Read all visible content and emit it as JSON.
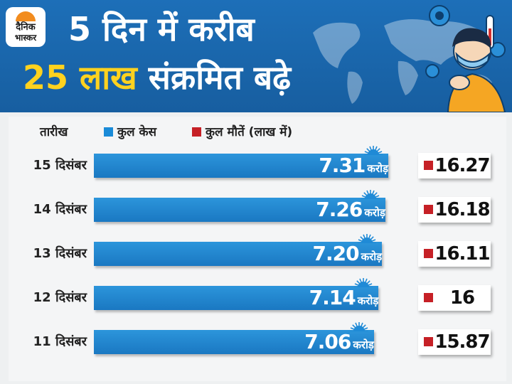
{
  "colors": {
    "header_bg": "#1d6fb8",
    "bar": "#1a78c2",
    "death_marker": "#c62026",
    "highlight": "#ffd21f"
  },
  "logo": {
    "line1": "दैनिक",
    "line2": "भास्कर"
  },
  "header": {
    "title_line1": "5 दिन में करीब",
    "title_line2_highlight": "25 लाख",
    "title_line2_rest": " संक्रमित बढ़े"
  },
  "legend": {
    "date_header": "तारीख",
    "cases_label": "कुल केस",
    "deaths_label": "कुल मौतें (लाख में)"
  },
  "chart_data": {
    "type": "bar",
    "orientation": "horizontal",
    "categories": [
      "15 दिसंबर",
      "14 दिसंबर",
      "13 दिसंबर",
      "12 दिसंबर",
      "11 दिसंबर"
    ],
    "series": [
      {
        "name": "कुल केस",
        "unit": "करोड़",
        "values": [
          7.31,
          7.26,
          7.2,
          7.14,
          7.06
        ],
        "labels": [
          "7.31",
          "7.26",
          "7.20",
          "7.14",
          "7.06"
        ]
      },
      {
        "name": "कुल मौतें (लाख में)",
        "values": [
          16.27,
          16.18,
          16.11,
          16,
          15.87
        ],
        "labels": [
          "16.27",
          "16.18",
          "16.11",
          "16",
          "15.87"
        ]
      }
    ]
  }
}
